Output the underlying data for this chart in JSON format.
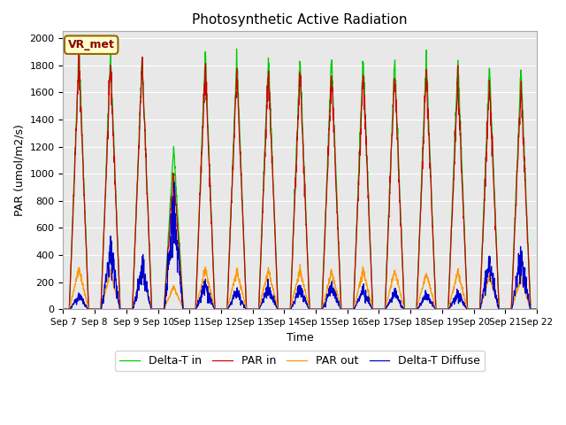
{
  "title": "Photosynthetic Active Radiation",
  "ylabel": "PAR (umol/m2/s)",
  "xlabel": "Time",
  "ylim": [
    0,
    2050
  ],
  "plot_bg": "#e8e8e8",
  "fig_bg": "#ffffff",
  "legend_labels": [
    "PAR in",
    "PAR out",
    "Delta-T in",
    "Delta-T Diffuse"
  ],
  "legend_colors": [
    "#cc0000",
    "#ff9900",
    "#00cc00",
    "#0000cc"
  ],
  "annotation_text": "VR_met",
  "annotation_bg": "#ffffcc",
  "annotation_border": "#996600",
  "x_tick_labels": [
    "Sep 7",
    "Sep 8",
    "Sep 9",
    "Sep 10",
    "Sep 11",
    "Sep 12",
    "Sep 13",
    "Sep 14",
    "Sep 15",
    "Sep 16",
    "Sep 17",
    "Sep 18",
    "Sep 19",
    "Sep 20",
    "Sep 21",
    "Sep 22"
  ],
  "num_days": 15,
  "peaks_par_in": [
    1840,
    1800,
    1820,
    1010,
    1800,
    1760,
    1760,
    1740,
    1730,
    1750,
    1740,
    1740,
    1700,
    1660,
    1650
  ],
  "peaks_par_out": [
    300,
    280,
    290,
    170,
    295,
    285,
    290,
    290,
    275,
    285,
    280,
    270,
    275,
    250,
    230
  ],
  "peaks_delta_in": [
    1920,
    1880,
    1860,
    1200,
    1890,
    1870,
    1870,
    1860,
    1850,
    1870,
    1850,
    1850,
    1840,
    1800,
    1780
  ],
  "peaks_delta_diff": [
    100,
    450,
    300,
    710,
    180,
    130,
    160,
    155,
    165,
    140,
    115,
    110,
    110,
    350,
    390
  ],
  "grid_color": "#ffffff",
  "line_width": 0.9
}
